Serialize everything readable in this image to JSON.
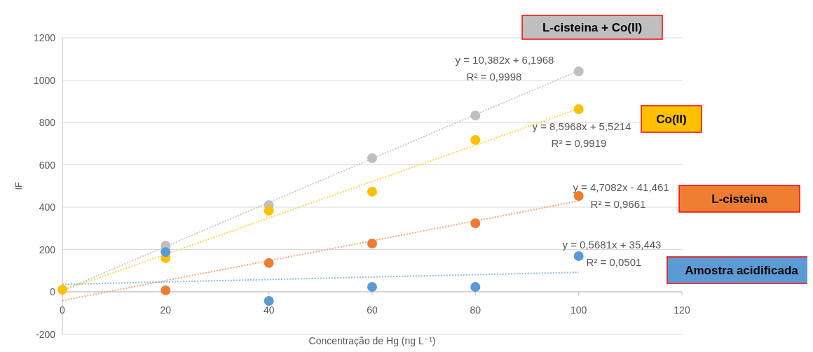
{
  "chart_data": {
    "type": "scatter",
    "xlabel": "Concentração de Hg (ng L⁻¹)",
    "ylabel": "IF",
    "x": [
      0,
      20,
      40,
      60,
      80,
      100
    ],
    "xlim": [
      0,
      120
    ],
    "xticks": [
      0,
      20,
      40,
      60,
      80,
      100,
      120
    ],
    "ylim": [
      -200,
      1200
    ],
    "yticks": [
      -200,
      0,
      200,
      400,
      600,
      800,
      1000,
      1200
    ],
    "grid": "y",
    "series": [
      {
        "name": "L-cisteina + Co(II)",
        "marker": "circle",
        "color": "#bfbfbf",
        "values": [
          null,
          218,
          410,
          631,
          833,
          1041
        ]
      },
      {
        "name": "Co(II)",
        "marker": "circle",
        "color": "#ffc000",
        "values": [
          10,
          159,
          383,
          473,
          717,
          863
        ]
      },
      {
        "name": "L-cisteina",
        "marker": "circle",
        "color": "#ed7d31",
        "values": [
          null,
          7,
          136,
          228,
          324,
          453
        ]
      },
      {
        "name": "Amostra acidificada",
        "marker": "circle",
        "color": "#5b9bd5",
        "values": [
          null,
          188,
          -43,
          23,
          23,
          169
        ]
      },
      {
        "type": "line",
        "marker": "none",
        "line_style": "dotted",
        "color": "#c9c9c9",
        "values": [
          6,
          214,
          422,
          629,
          837,
          1044
        ]
      },
      {
        "type": "line",
        "marker": "none",
        "line_style": "dotted",
        "color": "#ffd54f",
        "values": [
          6,
          177,
          349,
          521,
          693,
          865
        ]
      },
      {
        "type": "line",
        "marker": "none",
        "line_style": "dotted",
        "color": "#f4a77a",
        "values": [
          -41,
          53,
          147,
          241,
          335,
          429
        ]
      },
      {
        "type": "line",
        "marker": "none",
        "line_style": "dotted",
        "color": "#8fbde6",
        "values": [
          35,
          47,
          58,
          70,
          81,
          92
        ]
      }
    ],
    "annotations": [
      "y = 10,382x + 6,1968",
      "R² = 0,9998",
      "y = 8,5968x + 5,5214",
      "R² = 0,9919",
      "y = 4,7082x - 41,461",
      "R² = 0,9661",
      "y = 0,5681x + 35,443",
      "R² = 0,0501"
    ]
  }
}
